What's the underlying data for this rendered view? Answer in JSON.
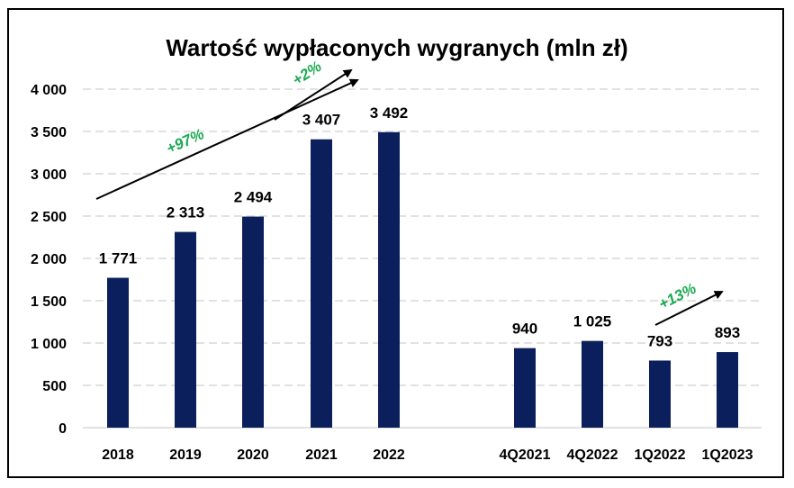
{
  "chart_data": {
    "type": "bar",
    "title": "Wartość wypłaconych wygranych  (mln zł)",
    "categories": [
      "2018",
      "2019",
      "2020",
      "2021",
      "2022",
      "4Q2021",
      "4Q2022",
      "1Q2022",
      "1Q2023"
    ],
    "values": [
      1771,
      2313,
      2494,
      3407,
      3492,
      940,
      1025,
      793,
      893
    ],
    "data_labels": [
      "1 771",
      "2 313",
      "2 494",
      "3 407",
      "3 492",
      "940",
      "1 025",
      "793",
      "893"
    ],
    "y_ticks": [
      0,
      500,
      1000,
      1500,
      2000,
      2500,
      3000,
      3500,
      4000
    ],
    "y_tick_labels": [
      "0",
      "500",
      "1 000",
      "1 500",
      "2 000",
      "2 500",
      "3 000",
      "3 500",
      "4 000"
    ],
    "ylim": [
      0,
      4000
    ],
    "grid": "horizontal dashed",
    "annotations": [
      {
        "text": "+97%",
        "from": "2018",
        "to": "2022"
      },
      {
        "text": "+2%",
        "from": "2021",
        "to": "2022"
      },
      {
        "text": "+13%",
        "from": "1Q2022",
        "to": "1Q2023"
      }
    ],
    "xlabel": "",
    "ylabel": ""
  },
  "colors": {
    "bar": "#0b1f5c",
    "annotation": "#1aab52",
    "arrow": "#000000",
    "grid": "#d9d9d9"
  }
}
